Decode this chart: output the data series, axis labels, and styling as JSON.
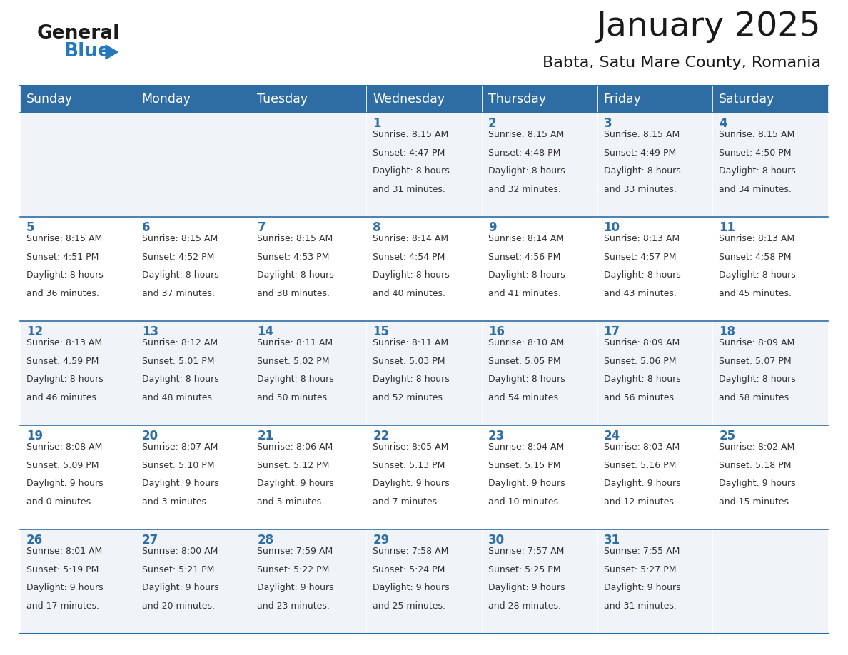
{
  "title": "January 2025",
  "subtitle": "Babta, Satu Mare County, Romania",
  "header_bg_color": "#2E6DA4",
  "header_text_color": "#FFFFFF",
  "cell_bg_color_odd": "#F0F4F8",
  "cell_bg_color_even": "#FFFFFF",
  "text_color": "#333333",
  "border_color": "#2E6DA4",
  "days_of_week": [
    "Sunday",
    "Monday",
    "Tuesday",
    "Wednesday",
    "Thursday",
    "Friday",
    "Saturday"
  ],
  "logo_color1": "#1a1a1a",
  "logo_color2": "#2479BD",
  "calendar_data": [
    [
      {
        "day": "",
        "sunrise": "",
        "sunset": "",
        "daylight": ""
      },
      {
        "day": "",
        "sunrise": "",
        "sunset": "",
        "daylight": ""
      },
      {
        "day": "",
        "sunrise": "",
        "sunset": "",
        "daylight": ""
      },
      {
        "day": "1",
        "sunrise": "8:15 AM",
        "sunset": "4:47 PM",
        "daylight": "8 hours\nand 31 minutes."
      },
      {
        "day": "2",
        "sunrise": "8:15 AM",
        "sunset": "4:48 PM",
        "daylight": "8 hours\nand 32 minutes."
      },
      {
        "day": "3",
        "sunrise": "8:15 AM",
        "sunset": "4:49 PM",
        "daylight": "8 hours\nand 33 minutes."
      },
      {
        "day": "4",
        "sunrise": "8:15 AM",
        "sunset": "4:50 PM",
        "daylight": "8 hours\nand 34 minutes."
      }
    ],
    [
      {
        "day": "5",
        "sunrise": "8:15 AM",
        "sunset": "4:51 PM",
        "daylight": "8 hours\nand 36 minutes."
      },
      {
        "day": "6",
        "sunrise": "8:15 AM",
        "sunset": "4:52 PM",
        "daylight": "8 hours\nand 37 minutes."
      },
      {
        "day": "7",
        "sunrise": "8:15 AM",
        "sunset": "4:53 PM",
        "daylight": "8 hours\nand 38 minutes."
      },
      {
        "day": "8",
        "sunrise": "8:14 AM",
        "sunset": "4:54 PM",
        "daylight": "8 hours\nand 40 minutes."
      },
      {
        "day": "9",
        "sunrise": "8:14 AM",
        "sunset": "4:56 PM",
        "daylight": "8 hours\nand 41 minutes."
      },
      {
        "day": "10",
        "sunrise": "8:13 AM",
        "sunset": "4:57 PM",
        "daylight": "8 hours\nand 43 minutes."
      },
      {
        "day": "11",
        "sunrise": "8:13 AM",
        "sunset": "4:58 PM",
        "daylight": "8 hours\nand 45 minutes."
      }
    ],
    [
      {
        "day": "12",
        "sunrise": "8:13 AM",
        "sunset": "4:59 PM",
        "daylight": "8 hours\nand 46 minutes."
      },
      {
        "day": "13",
        "sunrise": "8:12 AM",
        "sunset": "5:01 PM",
        "daylight": "8 hours\nand 48 minutes."
      },
      {
        "day": "14",
        "sunrise": "8:11 AM",
        "sunset": "5:02 PM",
        "daylight": "8 hours\nand 50 minutes."
      },
      {
        "day": "15",
        "sunrise": "8:11 AM",
        "sunset": "5:03 PM",
        "daylight": "8 hours\nand 52 minutes."
      },
      {
        "day": "16",
        "sunrise": "8:10 AM",
        "sunset": "5:05 PM",
        "daylight": "8 hours\nand 54 minutes."
      },
      {
        "day": "17",
        "sunrise": "8:09 AM",
        "sunset": "5:06 PM",
        "daylight": "8 hours\nand 56 minutes."
      },
      {
        "day": "18",
        "sunrise": "8:09 AM",
        "sunset": "5:07 PM",
        "daylight": "8 hours\nand 58 minutes."
      }
    ],
    [
      {
        "day": "19",
        "sunrise": "8:08 AM",
        "sunset": "5:09 PM",
        "daylight": "9 hours\nand 0 minutes."
      },
      {
        "day": "20",
        "sunrise": "8:07 AM",
        "sunset": "5:10 PM",
        "daylight": "9 hours\nand 3 minutes."
      },
      {
        "day": "21",
        "sunrise": "8:06 AM",
        "sunset": "5:12 PM",
        "daylight": "9 hours\nand 5 minutes."
      },
      {
        "day": "22",
        "sunrise": "8:05 AM",
        "sunset": "5:13 PM",
        "daylight": "9 hours\nand 7 minutes."
      },
      {
        "day": "23",
        "sunrise": "8:04 AM",
        "sunset": "5:15 PM",
        "daylight": "9 hours\nand 10 minutes."
      },
      {
        "day": "24",
        "sunrise": "8:03 AM",
        "sunset": "5:16 PM",
        "daylight": "9 hours\nand 12 minutes."
      },
      {
        "day": "25",
        "sunrise": "8:02 AM",
        "sunset": "5:18 PM",
        "daylight": "9 hours\nand 15 minutes."
      }
    ],
    [
      {
        "day": "26",
        "sunrise": "8:01 AM",
        "sunset": "5:19 PM",
        "daylight": "9 hours\nand 17 minutes."
      },
      {
        "day": "27",
        "sunrise": "8:00 AM",
        "sunset": "5:21 PM",
        "daylight": "9 hours\nand 20 minutes."
      },
      {
        "day": "28",
        "sunrise": "7:59 AM",
        "sunset": "5:22 PM",
        "daylight": "9 hours\nand 23 minutes."
      },
      {
        "day": "29",
        "sunrise": "7:58 AM",
        "sunset": "5:24 PM",
        "daylight": "9 hours\nand 25 minutes."
      },
      {
        "day": "30",
        "sunrise": "7:57 AM",
        "sunset": "5:25 PM",
        "daylight": "9 hours\nand 28 minutes."
      },
      {
        "day": "31",
        "sunrise": "7:55 AM",
        "sunset": "5:27 PM",
        "daylight": "9 hours\nand 31 minutes."
      },
      {
        "day": "",
        "sunrise": "",
        "sunset": "",
        "daylight": ""
      }
    ]
  ]
}
